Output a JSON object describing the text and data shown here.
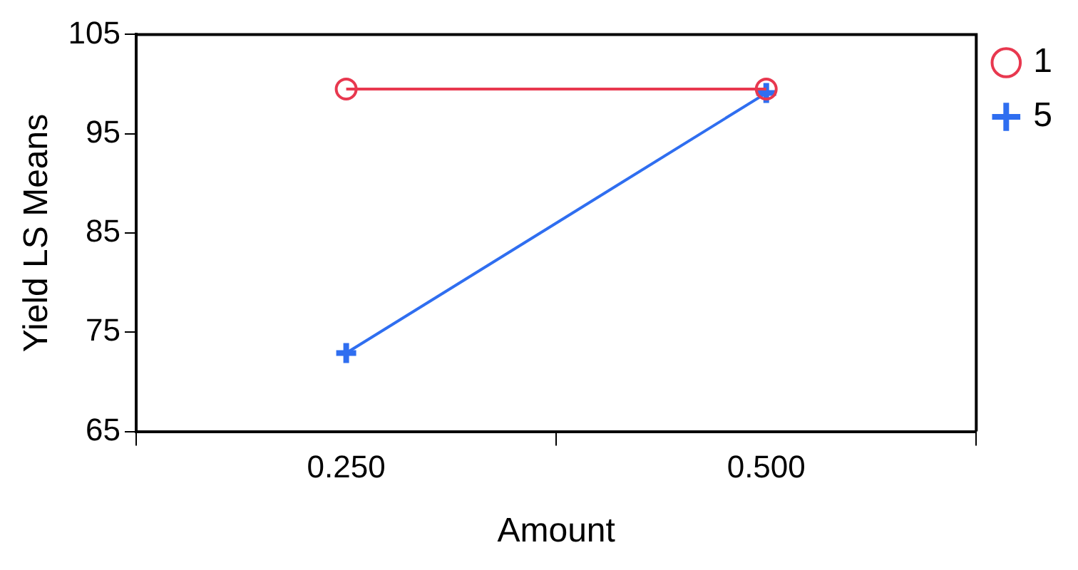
{
  "chart_data": {
    "type": "line",
    "xlabel": "Amount",
    "ylabel": "Yield LS Means",
    "categories": [
      "0.250",
      "0.500"
    ],
    "series": [
      {
        "name": "1",
        "color": "#e8384f",
        "values": [
          99.5,
          99.5
        ],
        "marker": "circle"
      },
      {
        "name": "5",
        "color": "#2f6ef0",
        "values": [
          72.9,
          99.1
        ],
        "marker": "cross"
      }
    ],
    "ylim": [
      65,
      105
    ],
    "yticks": [
      65,
      75,
      85,
      95,
      105
    ],
    "grid": false,
    "legend": "right",
    "line_style": "solid"
  }
}
